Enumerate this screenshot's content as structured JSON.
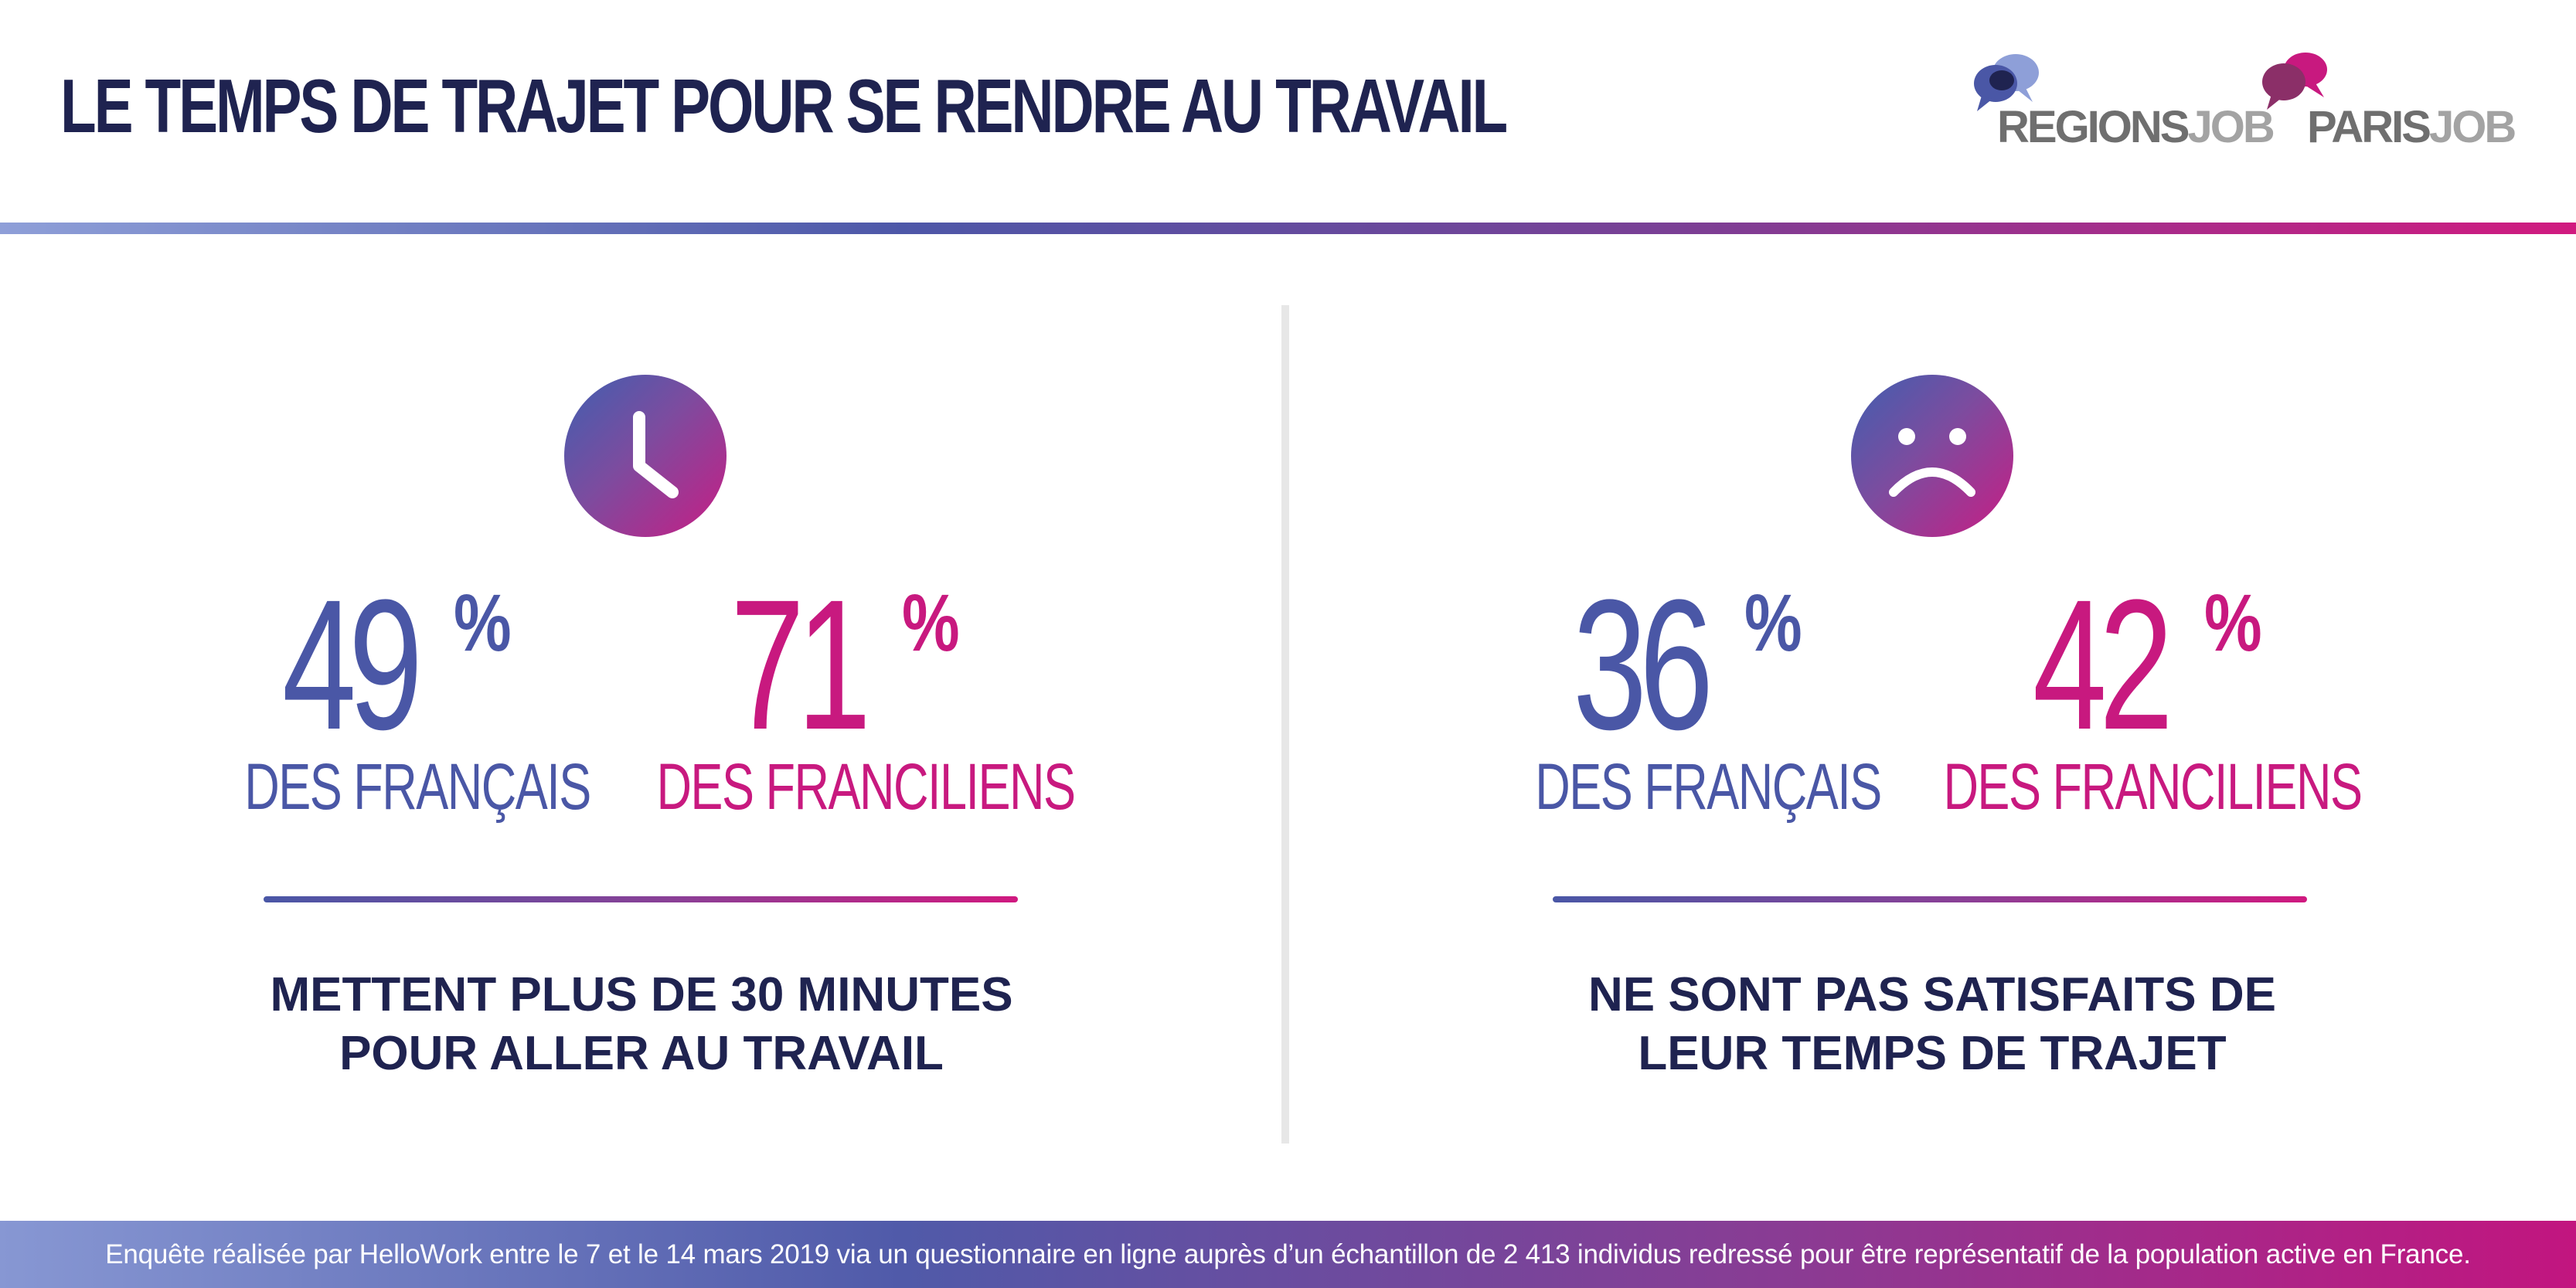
{
  "header": {
    "title": "LE TEMPS DE TRAJET POUR SE RENDRE AU TRAVAIL"
  },
  "logos": {
    "regionsjob": {
      "strong": "REGIONS",
      "light": "JOB"
    },
    "parisjob": {
      "strong": "PARIS",
      "light": "JOB"
    }
  },
  "panels": [
    {
      "icon": "clock-icon",
      "stats": [
        {
          "value": "49",
          "unit": "%",
          "label": "DES FRANÇAIS",
          "color": "#4a57a6"
        },
        {
          "value": "71",
          "unit": "%",
          "label": "DES FRANCILIENS",
          "color": "#c8197f"
        }
      ],
      "caption_line1": "METTENT PLUS DE 30 MINUTES",
      "caption_line2": "POUR ALLER AU TRAVAIL"
    },
    {
      "icon": "sad-face-icon",
      "stats": [
        {
          "value": "36",
          "unit": "%",
          "label": "DES FRANÇAIS",
          "color": "#4a57a6"
        },
        {
          "value": "42",
          "unit": "%",
          "label": "DES FRANCILIENS",
          "color": "#c8197f"
        }
      ],
      "caption_line1": "NE SONT PAS SATISFAITS DE",
      "caption_line2": "LEUR TEMPS DE TRAJET"
    }
  ],
  "footer": {
    "text": "Enquête réalisée par HelloWork entre le 7 et le 14 mars 2019 via un questionnaire en ligne auprès d’un échantillon de 2 413 individus redressé pour être représentatif de la population active en France."
  },
  "colors": {
    "navy": "#1f2350",
    "blue": "#4a57a6",
    "magenta": "#c8197f",
    "divider": "#e7e7e7"
  }
}
